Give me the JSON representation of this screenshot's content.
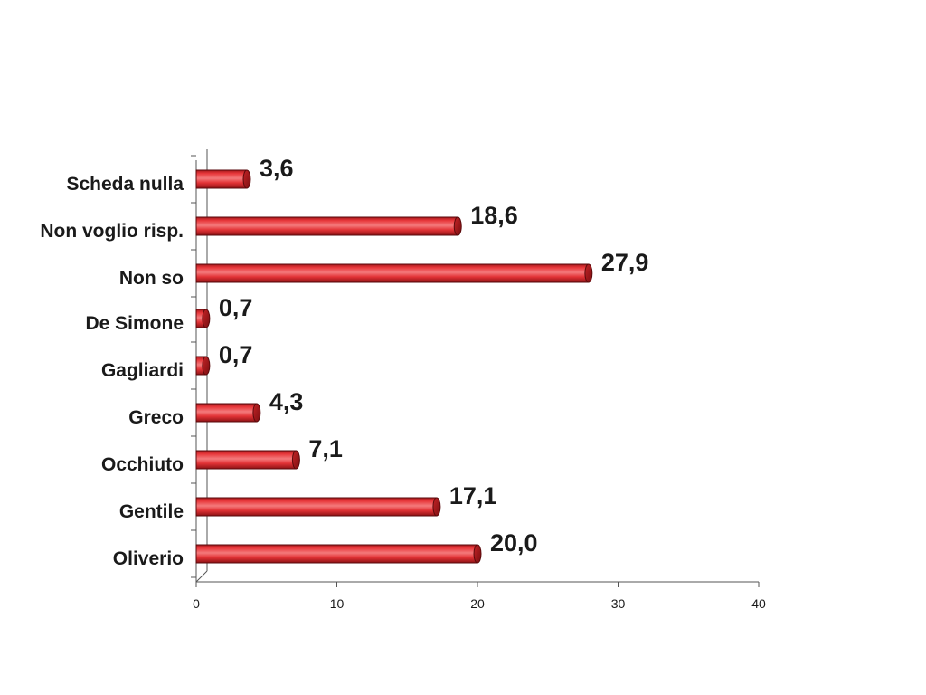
{
  "chart_data": {
    "type": "bar",
    "orientation": "horizontal",
    "categories": [
      "Oliverio",
      "Gentile",
      "Occhiuto",
      "Greco",
      "Gagliardi",
      "De Simone",
      "Non so",
      "Non voglio risp.",
      "Scheda nulla"
    ],
    "values": [
      20.0,
      17.1,
      7.1,
      4.3,
      0.7,
      0.7,
      27.9,
      18.6,
      3.6
    ],
    "value_labels": [
      "20,0",
      "17,1",
      "7,1",
      "4,3",
      "0,7",
      "0,7",
      "27,9",
      "18,6",
      "3,6"
    ],
    "xlim": [
      0,
      40
    ],
    "xticks": [
      0,
      10,
      20,
      30,
      40
    ],
    "xtick_labels": [
      "0",
      "10",
      "20",
      "30",
      "40"
    ],
    "title": "",
    "xlabel": "",
    "ylabel": "",
    "grid": false,
    "legend": "none",
    "bar_style": "3d-cylinder",
    "colors": {
      "bar_fill": "#e8373a",
      "bar_dark": "#9e1518",
      "bar_highlight": "#f47a7c",
      "bar_outline": "#5a0a0c",
      "axis": "#555555",
      "text": "#1a1a1a"
    }
  }
}
